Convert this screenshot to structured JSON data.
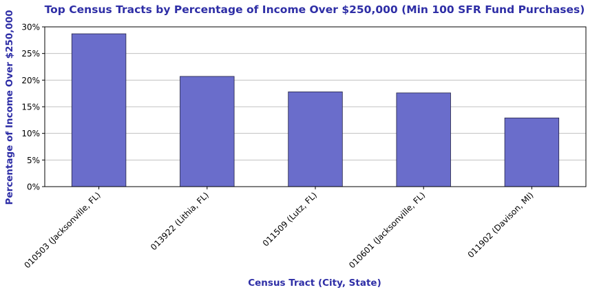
{
  "chart_data": {
    "type": "bar",
    "title": "Top Census Tracts by Percentage of Income Over $250,000 (Min 100 SFR Fund Purchases)",
    "xlabel": "Census Tract (City, State)",
    "ylabel": "Percentage of Income Over $250,000",
    "categories": [
      "010503 (Jacksonville, FL)",
      "013922 (Lithia, FL)",
      "011509 (Lutz, FL)",
      "010601 (Jacksonville, FL)",
      "011902 (Davison, MI)"
    ],
    "values": [
      28.7,
      20.7,
      17.8,
      17.6,
      12.9
    ],
    "ylim": [
      0,
      30
    ],
    "yticks": [
      0,
      5,
      10,
      15,
      20,
      25,
      30
    ],
    "ytick_labels": [
      "0%",
      "5%",
      "10%",
      "15%",
      "20%",
      "25%",
      "30%"
    ],
    "grid": "horizontal",
    "legend": "none",
    "colors": {
      "bar_fill": "#6a6dcb",
      "bar_edge": "#222244",
      "title": "#2e2ea6",
      "axis_title": "#2e2ea6",
      "grid": "#c0c0c0"
    }
  }
}
